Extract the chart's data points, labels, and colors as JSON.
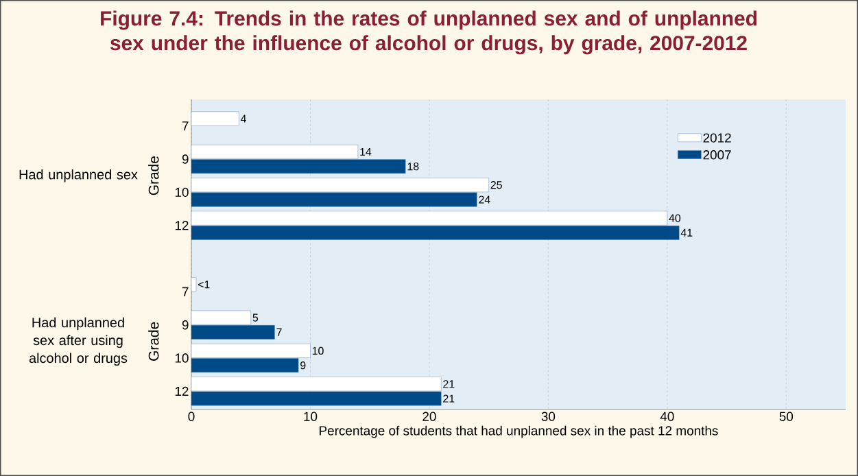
{
  "chart_data": {
    "type": "bar",
    "orientation": "horizontal",
    "title": "Figure 7.4: Trends in the rates of unplanned sex and of unplanned sex under the influence of alcohol or drugs, by grade, 2007-2012",
    "xlabel": "Percentage of students that had unplanned sex in the past 12 months",
    "ylabel": "Grade",
    "annotations": [
      "Had unplanned sex",
      "Had unplanned sex after using alcohol or drugs"
    ],
    "categories": [
      "7",
      "9",
      "10",
      "12",
      null,
      "7",
      "9",
      "10",
      "12"
    ],
    "series": [
      {
        "name": "2012",
        "color": "#ffffff",
        "values": [
          4,
          14,
          25,
          40,
          null,
          0.4,
          5,
          10,
          21
        ],
        "value_labels": [
          "4",
          "14",
          "25",
          "40",
          null,
          "<1",
          "5",
          "10",
          "21"
        ]
      },
      {
        "name": "2007",
        "color": "#004b87",
        "values": [
          null,
          18,
          24,
          41,
          null,
          null,
          7,
          9,
          21
        ],
        "value_labels": [
          null,
          "18",
          "24",
          "41",
          null,
          null,
          "7",
          "9",
          "21"
        ]
      }
    ],
    "xlim": [
      0,
      55
    ],
    "xticks": [
      0,
      10,
      20,
      30,
      40,
      50
    ],
    "grid": "x",
    "legend": "top right"
  }
}
